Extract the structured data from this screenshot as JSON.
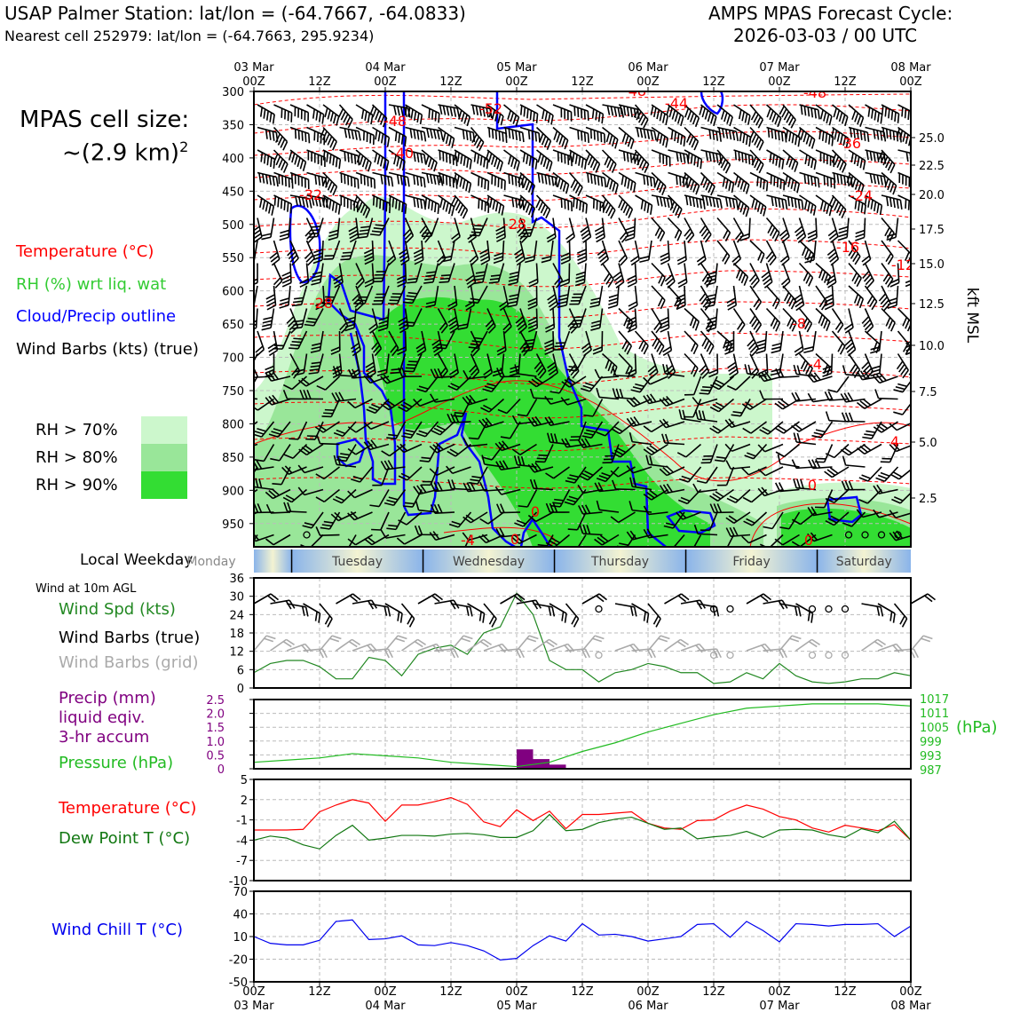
{
  "header": {
    "station_title": "USAP Palmer Station: lat/lon = (-64.7667, -64.0833)",
    "nearest_cell": "Nearest cell 252979: lat/lon = (-64.7663, 295.9234)",
    "forecast_title": "AMPS MPAS Forecast Cycle:",
    "forecast_cycle": "2026-03-03 / 00 UTC"
  },
  "cell_size": {
    "label": "MPAS cell size:",
    "value": "~(2.9 km)",
    "exponent": "2"
  },
  "legend_upper": {
    "temperature": "Temperature (°C)",
    "rh": "RH (%) wrt liq. wat",
    "cloud": "Cloud/Precip outline",
    "wind": "Wind Barbs (kts) (true)",
    "rh70": "RH > 70%",
    "rh80": "RH > 80%",
    "rh90": "RH > 90%"
  },
  "legend_lower": {
    "local_weekday": "Local Weekday",
    "wind_at": "Wind at 10m AGL",
    "wind_spd": "Wind Spd (kts)",
    "wind_barbs_true": "Wind Barbs (true)",
    "wind_barbs_grid": "Wind Barbs (grid)",
    "precip_1": "Precip (mm)",
    "precip_2": "liquid eqiv.",
    "precip_3": "3-hr accum",
    "pressure": "Pressure (hPa)",
    "pressure_unit": "(hPa)",
    "temp": "Temperature (°C)",
    "dew": "Dew Point T (°C)",
    "wind_chill": "Wind Chill T (°C)"
  },
  "colors": {
    "temperature": "#ff0000",
    "rh_green": "#33cc33",
    "cloud": "#0000ff",
    "rh70": "#ccf7cc",
    "rh80": "#99e699",
    "rh90": "#33dd33",
    "wind_spd": "#228822",
    "precip": "#800080",
    "pressure": "#22bb22",
    "dew": "#117711",
    "wind_chill": "#0000ee",
    "grid_barb": "#aaaaaa"
  },
  "weekdays": [
    "Monday",
    "Tuesday",
    "Wednesday",
    "Thursday",
    "Friday",
    "Saturday"
  ],
  "chart_data": [
    {
      "type": "heatmap",
      "title": "Vertical cross-section",
      "x_ticks_top_hour": [
        "00Z",
        "12Z",
        "00Z",
        "12Z",
        "00Z",
        "12Z",
        "00Z",
        "12Z",
        "00Z",
        "12Z",
        "00Z"
      ],
      "x_ticks_top_date": [
        "03 Mar",
        "",
        "04 Mar",
        "",
        "05 Mar",
        "",
        "06 Mar",
        "",
        "07 Mar",
        "",
        "08 Mar"
      ],
      "y_ticks_left": [
        "300",
        "350",
        "400",
        "450",
        "500",
        "550",
        "600",
        "650",
        "700",
        "750",
        "800",
        "850",
        "900",
        "950"
      ],
      "y_ticks_right": [
        "25.0",
        "22.5",
        "20.0",
        "17.5",
        "15.0",
        "12.5",
        "10.0",
        "7.5",
        "5.0",
        "2.5"
      ],
      "ylabel_right": "kft MSL",
      "temperature_labels": [
        "-48",
        "-52",
        "-48",
        "-44",
        "-48",
        "-40",
        "-36",
        "-32",
        "-24",
        "-28",
        "-16",
        "-12",
        "-28",
        "-8",
        "-4",
        "4",
        "0",
        "0",
        "0",
        "-4",
        "0"
      ]
    },
    {
      "type": "line",
      "title": "Wind Spd (kts)",
      "x_hours": [
        0,
        3,
        6,
        9,
        12,
        15,
        18,
        21,
        24,
        27,
        30,
        33,
        36,
        39,
        42,
        45,
        48,
        51,
        54,
        57,
        60,
        63,
        66,
        69,
        72,
        75,
        78,
        81,
        84,
        87,
        90,
        93,
        96,
        99,
        102,
        105,
        108,
        111,
        114,
        117,
        120
      ],
      "values": [
        5,
        8,
        9,
        9,
        7,
        3,
        3,
        10,
        9,
        4,
        11,
        13,
        14,
        11,
        18,
        20,
        31,
        24,
        9,
        6,
        6,
        2,
        5,
        6,
        8,
        7,
        5,
        5,
        1.5,
        2,
        5,
        3,
        8,
        4,
        2,
        1.5,
        2,
        3,
        3,
        5,
        4
      ],
      "ylim": [
        0,
        36
      ],
      "yticks": [
        "36",
        "30",
        "24",
        "18",
        "12",
        "6",
        "0"
      ]
    },
    {
      "type": "bar",
      "title": "Precip (mm) / Pressure (hPa)",
      "precip_hours": [
        51,
        54,
        57
      ],
      "precip_values": [
        0.7,
        0.35,
        0.15
      ],
      "precip_ylim": [
        0,
        2.5
      ],
      "precip_yticks": [
        "2.5",
        "2.0",
        "1.5",
        "1.0",
        "0.5",
        "0"
      ],
      "pressure_hours": [
        0,
        6,
        12,
        18,
        24,
        30,
        36,
        42,
        48,
        54,
        60,
        66,
        72,
        78,
        84,
        90,
        96,
        102,
        108,
        114,
        120
      ],
      "pressure_values": [
        988,
        989,
        990,
        992,
        991,
        990,
        988,
        987,
        986,
        988,
        993,
        997,
        1002,
        1006,
        1010,
        1013,
        1014,
        1015,
        1015,
        1015,
        1014
      ],
      "pressure_ylim": [
        985,
        1017
      ],
      "pressure_yticks": [
        "1017",
        "1011",
        "1005",
        "999",
        "993",
        "987"
      ]
    },
    {
      "type": "line",
      "title": "Temperature / Dew Point",
      "x_hours": [
        0,
        3,
        6,
        9,
        12,
        15,
        18,
        21,
        24,
        27,
        30,
        33,
        36,
        39,
        42,
        45,
        48,
        51,
        54,
        57,
        60,
        63,
        66,
        69,
        72,
        75,
        78,
        81,
        84,
        87,
        90,
        93,
        96,
        99,
        102,
        105,
        108,
        111,
        114,
        117,
        120
      ],
      "series": [
        {
          "name": "Temperature (°C)",
          "values": [
            -2.5,
            -2.5,
            -2.5,
            -2.4,
            0.2,
            1.2,
            2,
            1.5,
            -1.2,
            1.2,
            1.2,
            1.7,
            2.3,
            1.3,
            -1.3,
            -2,
            0.5,
            -1.1,
            0.3,
            -2.3,
            -0.2,
            -0.2,
            0,
            0.2,
            -1.5,
            -2.2,
            -2.4,
            -1.1,
            -1,
            0.3,
            1.2,
            0.6,
            -0.5,
            -1,
            -2.2,
            -2.8,
            -1.8,
            -2.2,
            -2.6,
            -1.7,
            -4
          ]
        },
        {
          "name": "Dew Point T (°C)",
          "values": [
            -4,
            -3.4,
            -3.7,
            -4.7,
            -5.3,
            -3.3,
            -1.8,
            -4,
            -3.7,
            -3.3,
            -3.3,
            -3.4,
            -3.1,
            -3,
            -3.2,
            -3.6,
            -3.6,
            -2.6,
            -0.2,
            -2.6,
            -2.4,
            -1.4,
            -0.9,
            -0.6,
            -1.5,
            -2.4,
            -2.2,
            -3.8,
            -3.5,
            -3.3,
            -2.7,
            -3.6,
            -2.5,
            -2.4,
            -2.5,
            -3.2,
            -3.6,
            -2.3,
            -2.9,
            -1.2,
            -4
          ]
        }
      ],
      "ylim": [
        -10,
        5
      ],
      "yticks": [
        "5",
        "2",
        "-1",
        "-4",
        "-7",
        "-10"
      ]
    },
    {
      "type": "line",
      "title": "Wind Chill T (°C)",
      "x_hours": [
        0,
        3,
        6,
        9,
        12,
        15,
        18,
        21,
        24,
        27,
        30,
        33,
        36,
        39,
        42,
        45,
        48,
        51,
        54,
        57,
        60,
        63,
        66,
        69,
        72,
        75,
        78,
        81,
        84,
        87,
        90,
        93,
        96,
        99,
        102,
        105,
        108,
        111,
        114,
        117,
        120
      ],
      "values": [
        10,
        1,
        -1,
        -1,
        5,
        30,
        32,
        6,
        7,
        11,
        -1,
        -2,
        2,
        -2,
        -9,
        -21,
        -19,
        -2,
        11,
        4,
        27,
        12,
        13,
        10,
        4,
        7,
        10,
        26,
        27,
        9,
        30,
        18,
        3,
        27,
        26,
        24,
        26,
        26,
        27,
        10,
        24
      ],
      "ylim": [
        -50,
        70
      ],
      "yticks": [
        "70",
        "40",
        "10",
        "-20",
        "-50"
      ],
      "x_ticks_bottom_hour": [
        "00Z",
        "12Z",
        "00Z",
        "12Z",
        "00Z",
        "12Z",
        "00Z",
        "12Z",
        "00Z",
        "12Z",
        "00Z"
      ],
      "x_ticks_bottom_date": [
        "03 Mar",
        "",
        "04 Mar",
        "",
        "05 Mar",
        "",
        "06 Mar",
        "",
        "07 Mar",
        "",
        "08 Mar"
      ]
    }
  ]
}
